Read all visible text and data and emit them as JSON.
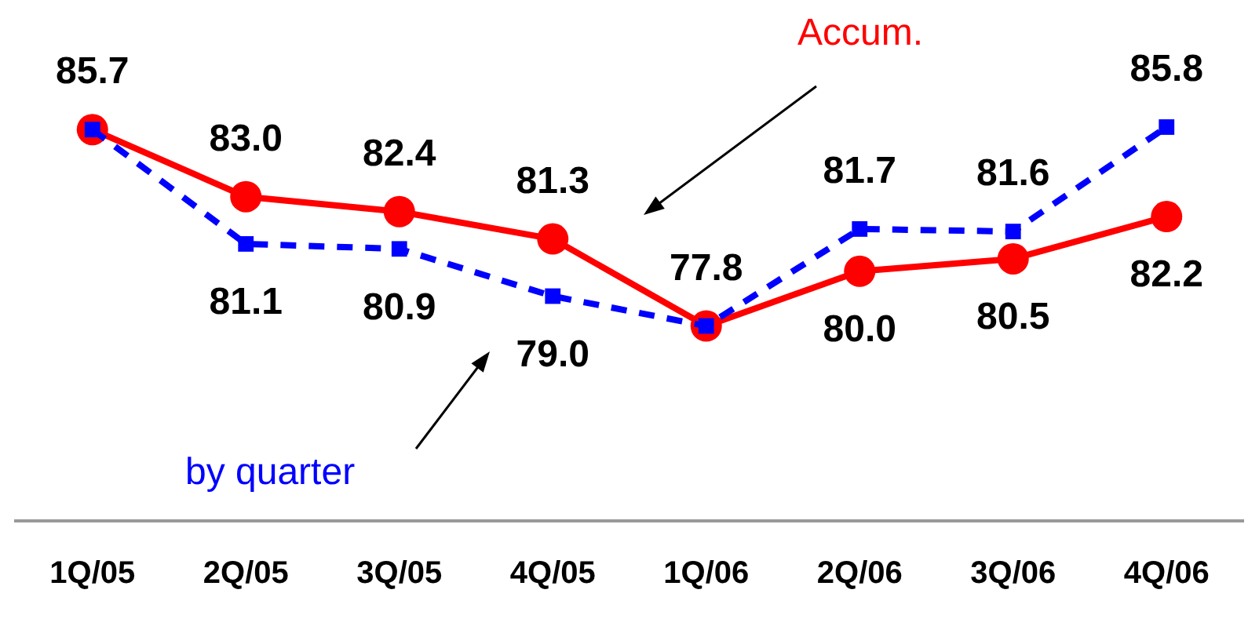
{
  "chart_data": {
    "type": "line",
    "categories": [
      "1Q/05",
      "2Q/05",
      "3Q/05",
      "4Q/05",
      "1Q/06",
      "2Q/06",
      "3Q/06",
      "4Q/06"
    ],
    "series": [
      {
        "name": "Accum.",
        "color": "#ff0000",
        "marker": "circle",
        "line_style": "solid",
        "values": [
          85.7,
          83.0,
          82.4,
          81.3,
          77.8,
          80.0,
          80.5,
          82.2
        ],
        "value_labels": [
          "85.7",
          "83.0",
          "82.4",
          "81.3",
          "77.8",
          "80.0",
          "80.5",
          "82.2"
        ]
      },
      {
        "name": "by quarter",
        "color": "#0000ff",
        "marker": "square",
        "line_style": "dashed",
        "values": [
          85.7,
          81.1,
          80.9,
          79.0,
          77.8,
          81.7,
          81.6,
          85.8
        ],
        "value_labels": [
          null,
          "81.1",
          "80.9",
          "79.0",
          null,
          "81.7",
          "81.6",
          "85.8"
        ]
      }
    ],
    "grid": false,
    "legend": false
  }
}
